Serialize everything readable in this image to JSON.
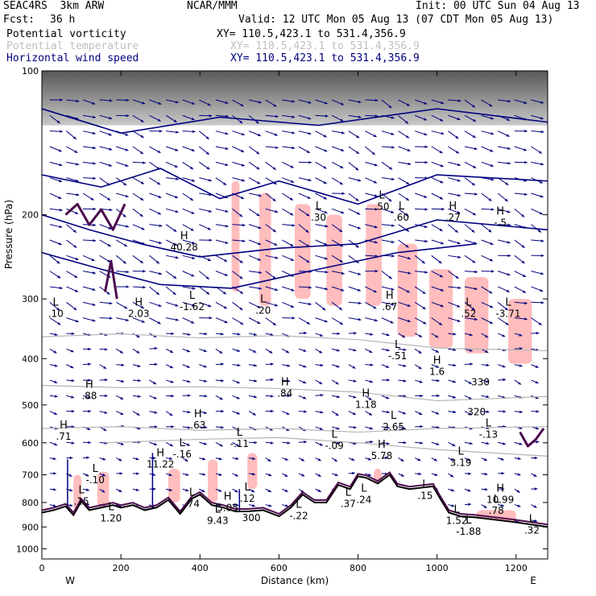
{
  "header": {
    "model": "SEAC4RS  3km ARW",
    "center": "NCAR/MMM",
    "init": "Init: 00 UTC Sun 04 Aug 13",
    "fcst_label": "Fcst:",
    "fcst_value": "36 h",
    "valid": "Valid: 12 UTC Mon 05 Aug 13 (07 CDT Mon 05 Aug 13)"
  },
  "fields": [
    {
      "name": "Potential vorticity",
      "xy": "XY= 110.5,423.1 to 531.4,356.9",
      "color": "#000000"
    },
    {
      "name": "Potential temperature",
      "xy": "XY= 110.5,423.1 to 531.4,356.9",
      "color": "#c0c0c0"
    },
    {
      "name": "Horizontal wind speed",
      "xy": "XY= 110.5,423.1 to 531.4,356.9",
      "color": "#000080"
    }
  ],
  "chart_data": {
    "type": "cross-section",
    "xlabel": "Distance (km)",
    "ylabel": "Pressure (hPa)",
    "xlim": [
      0,
      1280
    ],
    "ylim": [
      100,
      1050
    ],
    "y_scale": "log",
    "x_ticks": [
      0,
      200,
      400,
      600,
      800,
      1000,
      1200
    ],
    "x_tick_labels": [
      "0",
      "200",
      "400",
      "600",
      "800",
      "1000",
      "1200"
    ],
    "y_ticks": [
      100,
      200,
      300,
      400,
      500,
      600,
      700,
      800,
      900,
      1000
    ],
    "y_tick_labels": [
      "100",
      "200",
      "300",
      "400",
      "500",
      "600",
      "700",
      "800",
      "900",
      "1000"
    ],
    "endpoints": {
      "left": "W",
      "right": "E"
    },
    "terrain": [
      [
        0,
        840
      ],
      [
        30,
        830
      ],
      [
        60,
        815
      ],
      [
        80,
        850
      ],
      [
        100,
        795
      ],
      [
        120,
        830
      ],
      [
        150,
        820
      ],
      [
        180,
        810
      ],
      [
        200,
        820
      ],
      [
        230,
        810
      ],
      [
        260,
        830
      ],
      [
        290,
        820
      ],
      [
        320,
        790
      ],
      [
        350,
        845
      ],
      [
        380,
        785
      ],
      [
        400,
        770
      ],
      [
        430,
        810
      ],
      [
        460,
        820
      ],
      [
        490,
        835
      ],
      [
        520,
        835
      ],
      [
        560,
        830
      ],
      [
        600,
        855
      ],
      [
        630,
        820
      ],
      [
        660,
        770
      ],
      [
        690,
        800
      ],
      [
        720,
        800
      ],
      [
        750,
        735
      ],
      [
        780,
        750
      ],
      [
        800,
        705
      ],
      [
        820,
        710
      ],
      [
        850,
        730
      ],
      [
        880,
        700
      ],
      [
        900,
        740
      ],
      [
        930,
        750
      ],
      [
        960,
        745
      ],
      [
        990,
        740
      ],
      [
        1010,
        790
      ],
      [
        1030,
        840
      ],
      [
        1060,
        855
      ],
      [
        1100,
        860
      ],
      [
        1150,
        870
      ],
      [
        1200,
        880
      ],
      [
        1240,
        890
      ],
      [
        1280,
        900
      ]
    ],
    "theta_isentropes": [
      [
        [
          0,
          360
        ],
        [
          200,
          355
        ],
        [
          400,
          362
        ],
        [
          600,
          358
        ],
        [
          800,
          365
        ],
        [
          1000,
          380
        ],
        [
          1280,
          385
        ]
      ],
      [
        [
          0,
          455
        ],
        [
          200,
          460
        ],
        [
          400,
          458
        ],
        [
          600,
          462
        ],
        [
          800,
          470
        ],
        [
          1000,
          490
        ],
        [
          1280,
          480
        ]
      ],
      [
        [
          0,
          560
        ],
        [
          200,
          555
        ],
        [
          400,
          565
        ],
        [
          600,
          560
        ],
        [
          800,
          570
        ],
        [
          1000,
          560
        ],
        [
          1280,
          555
        ]
      ],
      [
        [
          160,
          600
        ],
        [
          400,
          590
        ],
        [
          600,
          585
        ],
        [
          800,
          600
        ],
        [
          1000,
          620
        ],
        [
          1280,
          640
        ]
      ]
    ],
    "wind_isotachs": [
      [
        [
          0,
          165
        ],
        [
          150,
          175
        ],
        [
          300,
          160
        ],
        [
          450,
          185
        ],
        [
          600,
          170
        ],
        [
          800,
          190
        ],
        [
          1000,
          165
        ],
        [
          1280,
          170
        ]
      ],
      [
        [
          0,
          200
        ],
        [
          120,
          215
        ],
        [
          250,
          230
        ],
        [
          400,
          245
        ],
        [
          600,
          235
        ],
        [
          800,
          230
        ],
        [
          1000,
          205
        ],
        [
          1280,
          215
        ]
      ],
      [
        [
          0,
          240
        ],
        [
          150,
          260
        ],
        [
          300,
          280
        ],
        [
          480,
          285
        ],
        [
          700,
          260
        ],
        [
          900,
          240
        ],
        [
          1100,
          230
        ]
      ],
      [
        [
          0,
          120
        ],
        [
          200,
          135
        ],
        [
          450,
          125
        ],
        [
          700,
          130
        ],
        [
          1000,
          120
        ],
        [
          1280,
          128
        ]
      ]
    ],
    "pv_highlights": [
      [
        [
          60,
          200
        ],
        [
          90,
          190
        ],
        [
          120,
          210
        ],
        [
          150,
          195
        ],
        [
          180,
          215
        ],
        [
          210,
          190
        ]
      ],
      [
        [
          160,
          290
        ],
        [
          175,
          250
        ],
        [
          190,
          300
        ]
      ],
      [
        [
          1210,
          570
        ],
        [
          1230,
          610
        ],
        [
          1250,
          590
        ],
        [
          1270,
          560
        ]
      ]
    ],
    "pv_pink_regions": [
      [
        480,
        170,
        20,
        120
      ],
      [
        550,
        180,
        30,
        130
      ],
      [
        640,
        190,
        40,
        110
      ],
      [
        720,
        200,
        40,
        110
      ],
      [
        820,
        190,
        40,
        120
      ],
      [
        900,
        230,
        50,
        130
      ],
      [
        980,
        260,
        60,
        120
      ],
      [
        1070,
        270,
        60,
        120
      ],
      [
        1180,
        300,
        60,
        110
      ],
      [
        80,
        700,
        20,
        130
      ],
      [
        140,
        690,
        30,
        130
      ],
      [
        320,
        680,
        30,
        120
      ],
      [
        420,
        650,
        25,
        150
      ],
      [
        520,
        630,
        25,
        120
      ],
      [
        840,
        680,
        20,
        100
      ],
      [
        1100,
        830,
        100,
        60
      ]
    ],
    "markers": [
      {
        "type": "L",
        "x": 35,
        "p": 310,
        "value": ".10"
      },
      {
        "type": "H",
        "x": 120,
        "p": 460,
        "value": ".88"
      },
      {
        "type": "H",
        "x": 55,
        "p": 560,
        "value": ".71"
      },
      {
        "type": "L",
        "x": 135,
        "p": 690,
        "value": "-.10"
      },
      {
        "type": "L",
        "x": 100,
        "p": 765,
        "value": ".15"
      },
      {
        "type": "L",
        "x": 175,
        "p": 830,
        "value": "1.20"
      },
      {
        "type": "H",
        "x": 245,
        "p": 310,
        "value": "2.03"
      },
      {
        "type": "H",
        "x": 300,
        "p": 640,
        "value": "11.22"
      },
      {
        "type": "H",
        "x": 395,
        "p": 530,
        "value": ".63"
      },
      {
        "type": "L",
        "x": 355,
        "p": 610,
        "value": "-.16"
      },
      {
        "type": "L",
        "x": 380,
        "p": 775,
        "value": ".74"
      },
      {
        "type": "H",
        "x": 360,
        "p": 225,
        "value": "40.28"
      },
      {
        "type": "L",
        "x": 380,
        "p": 300,
        "value": "-1.62"
      },
      {
        "type": "L",
        "x": 500,
        "p": 580,
        "value": "-.11"
      },
      {
        "type": "L",
        "x": 520,
        "p": 755,
        "value": ".12"
      },
      {
        "type": "H",
        "x": 470,
        "p": 790,
        "value": "5.05"
      },
      {
        "type": "L",
        "x": 445,
        "p": 840,
        "value": "9.43"
      },
      {
        "type": "L",
        "x": 560,
        "p": 305,
        "value": ".20"
      },
      {
        "type": "H",
        "x": 615,
        "p": 455,
        "value": ".84"
      },
      {
        "type": "L",
        "x": 650,
        "p": 820,
        "value": "-.22"
      },
      {
        "type": "L",
        "x": 700,
        "p": 195,
        "value": ".30"
      },
      {
        "type": "L",
        "x": 740,
        "p": 585,
        "value": "-.09"
      },
      {
        "type": "L",
        "x": 775,
        "p": 775,
        "value": ".37"
      },
      {
        "type": "L",
        "x": 815,
        "p": 760,
        "value": ".24"
      },
      {
        "type": "H",
        "x": 820,
        "p": 480,
        "value": "1.18"
      },
      {
        "type": "L",
        "x": 890,
        "p": 535,
        "value": "2.65"
      },
      {
        "type": "H",
        "x": 860,
        "p": 615,
        "value": "5.78"
      },
      {
        "type": "L",
        "x": 860,
        "p": 185,
        "value": ".50"
      },
      {
        "type": "L",
        "x": 910,
        "p": 195,
        "value": ".60"
      },
      {
        "type": "H",
        "x": 880,
        "p": 300,
        "value": ".67"
      },
      {
        "type": "L",
        "x": 900,
        "p": 380,
        "value": "-.51"
      },
      {
        "type": "L",
        "x": 970,
        "p": 745,
        "value": ".15"
      },
      {
        "type": "H",
        "x": 1000,
        "p": 410,
        "value": "1.6"
      },
      {
        "type": "L",
        "x": 1060,
        "p": 635,
        "value": "3.19"
      },
      {
        "type": "H",
        "x": 1040,
        "p": 195,
        "value": ".27"
      },
      {
        "type": "L",
        "x": 1080,
        "p": 310,
        "value": ".52"
      },
      {
        "type": "L",
        "x": 1180,
        "p": 310,
        "value": "-3.71"
      },
      {
        "type": "H",
        "x": 1160,
        "p": 200,
        "value": "-.5"
      },
      {
        "type": "L",
        "x": 1130,
        "p": 555,
        "value": "-.13"
      },
      {
        "type": "H",
        "x": 1160,
        "p": 760,
        "value": "10.99"
      },
      {
        "type": "L",
        "x": 1050,
        "p": 840,
        "value": "1.52"
      },
      {
        "type": "L",
        "x": 1080,
        "p": 885,
        "value": "-1.88"
      },
      {
        "type": "L",
        "x": 1150,
        "p": 800,
        "value": ".78"
      },
      {
        "type": "L",
        "x": 1240,
        "p": 880,
        "value": ".32"
      }
    ],
    "theta_labels": [
      {
        "x": 1110,
        "p": 455,
        "value": "330"
      },
      {
        "x": 1100,
        "p": 525,
        "value": "320"
      },
      {
        "x": 530,
        "p": 875,
        "value": "300"
      }
    ],
    "strong_winds": [
      {
        "x": 65,
        "p_top": 650,
        "p_bot": 880
      },
      {
        "x": 280,
        "p_top": 630,
        "p_bot": 855
      },
      {
        "x": 500,
        "p_top": 750,
        "p_bot": 880
      }
    ]
  }
}
